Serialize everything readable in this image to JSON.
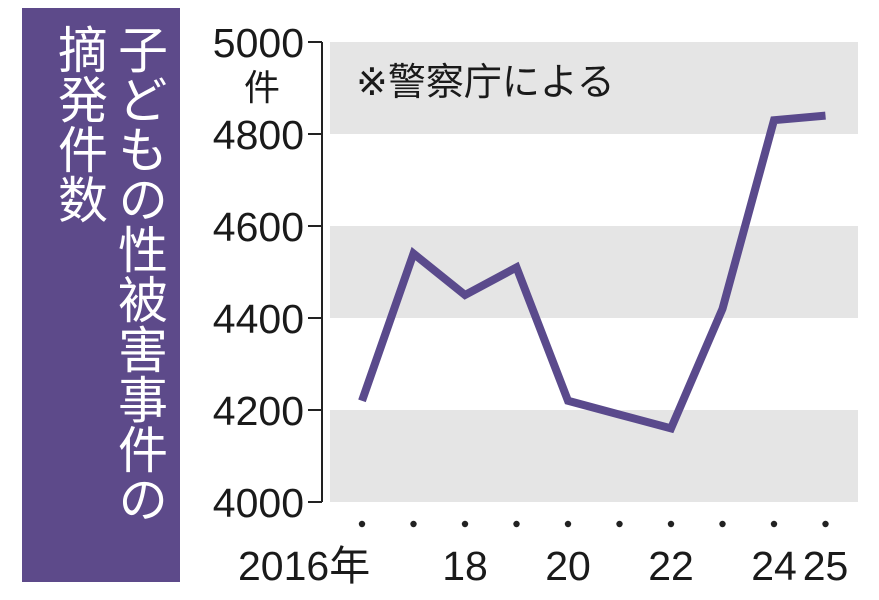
{
  "title": {
    "line1": "子どもの性被害事件の",
    "line2": "摘発件数"
  },
  "note": "※警察庁による",
  "colors": {
    "title_bg": "#5d4a8a",
    "line": "#5a4a8c",
    "band": "#e5e5e5"
  },
  "chart_data": {
    "type": "line",
    "title": "子どもの性被害事件の摘発件数",
    "x": [
      2016,
      2017,
      2018,
      2019,
      2020,
      2021,
      2022,
      2023,
      2024,
      2025
    ],
    "series": [
      {
        "values": [
          4220,
          4540,
          4450,
          4510,
          4220,
          4190,
          4160,
          4420,
          4830,
          4840
        ]
      }
    ],
    "ylim": [
      4000,
      5000
    ],
    "y_ticks": [
      4000,
      4200,
      4400,
      4600,
      4800,
      5000
    ],
    "y_unit": "件",
    "x_tick_labels": [
      {
        "x": 2016,
        "label": "2016年"
      },
      {
        "x": 2018,
        "label": "18"
      },
      {
        "x": 2020,
        "label": "20"
      },
      {
        "x": 2022,
        "label": "22"
      },
      {
        "x": 2024,
        "label": "24"
      },
      {
        "x": 2025,
        "label": "25"
      }
    ],
    "grid": "alternating horizontal bands",
    "note": "※警察庁による"
  }
}
